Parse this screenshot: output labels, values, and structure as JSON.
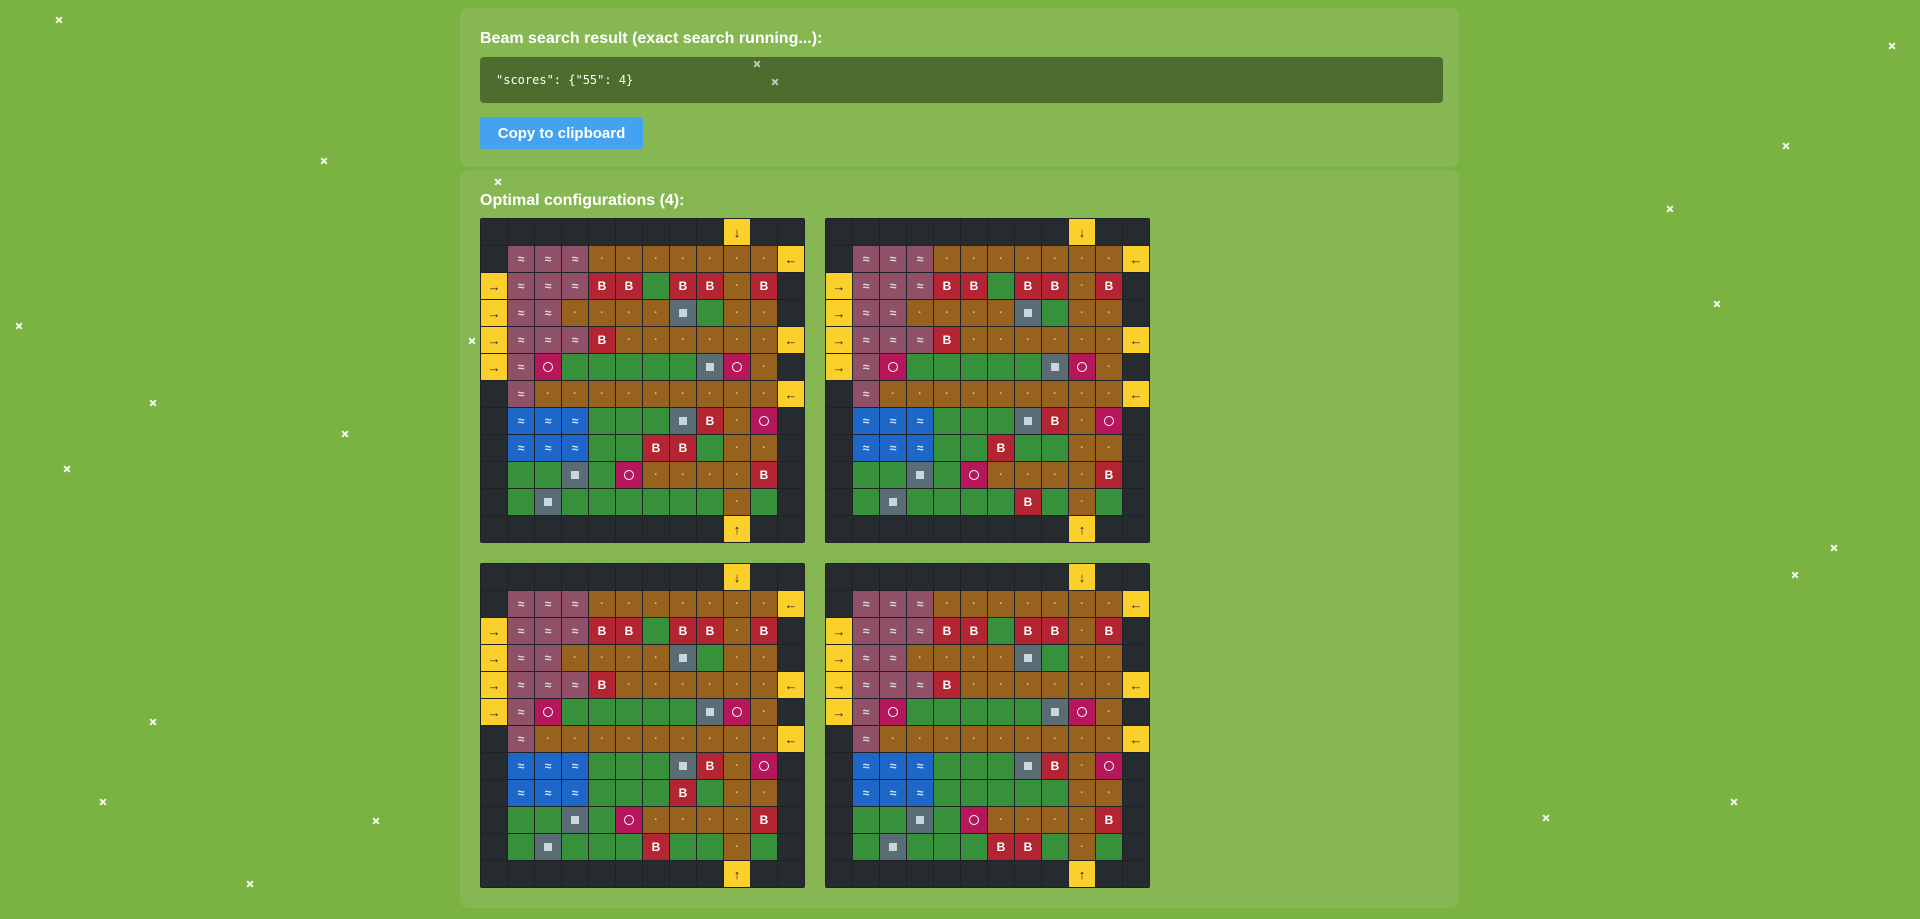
{
  "result_panel": {
    "title": "Beam search result (exact search running...):",
    "code": "\"scores\": {\"55\": 4}",
    "copy_button_label": "Copy to clipboard"
  },
  "configs_panel": {
    "title": "Optimal configurations (4):"
  },
  "legend": {
    "E": {
      "name": "empty",
      "color": "#262b30"
    },
    "A": {
      "name": "arrow",
      "color": "#fcd02b"
    },
    "W": {
      "name": "water-tile",
      "color": "#8f5068",
      "glyph": "≈"
    },
    "D": {
      "name": "dirt",
      "color": "#97621e",
      "glyph": "·"
    },
    "G": {
      "name": "grass",
      "color": "#37913a"
    },
    "B": {
      "name": "building",
      "color": "#b32532",
      "glyph": "B"
    },
    "S": {
      "name": "stone",
      "color": "#5a6c74"
    },
    "O": {
      "name": "ring",
      "color": "#b5175a"
    },
    "L": {
      "name": "lake",
      "color": "#1c67c8",
      "glyph": "≈"
    }
  },
  "grids": [
    {
      "rows": [
        "EEEEEEEEE↓EE",
        "EWWWDDDDDDD←",
        "→WWWBBGBBDBE",
        "→WWDDDDSGDDE",
        "→WWWBDDDDDD←",
        "→WOGGGGGSODE",
        "EWDDDDDDDDD←",
        "ELLLGGGSBDOE",
        "ELLLGGBBGDDE",
        "EGGSGODDDDBE",
        "EGSGGGGGGDGE",
        "EEEEEEEEE↑EE"
      ]
    },
    {
      "rows": [
        "EEEEEEEEE↓EE",
        "EWWWDDDDDDD←",
        "→WWWBBGBBDBE",
        "→WWDDDDSGDDE",
        "→WWWBDDDDDD←",
        "→WOGGGGGSODE",
        "EWDDDDDDDDD←",
        "ELLLGGGSBDOE",
        "ELLLGGBGGDDE",
        "EGGSGODDDDBE",
        "EGSGGGGBGDGE",
        "EEEEEEEEE↑EE"
      ]
    },
    {
      "rows": [
        "EEEEEEEEE↓EE",
        "EWWWDDDDDDD←",
        "→WWWBBGBBDBE",
        "→WWDDDDSGDDE",
        "→WWWBDDDDDD←",
        "→WOGGGGGSODE",
        "EWDDDDDDDDD←",
        "ELLLGGGSBDOE",
        "ELLLGGGBGDDE",
        "EGGSGODDDDBE",
        "EGSGGGBGGDGE",
        "EEEEEEEEE↑EE"
      ]
    },
    {
      "rows": [
        "EEEEEEEEE↓EE",
        "EWWWDDDDDDD←",
        "→WWWBBGBBDBE",
        "→WWDDDDSGDDE",
        "→WWWBDDDDDD←",
        "→WOGGGGGSODE",
        "EWDDDDDDDDD←",
        "ELLLGGGSBDOE",
        "ELLLGGGGGDDE",
        "EGGSGODDDDBE",
        "EGSGGGBBGDGE",
        "EEEEEEEEE↑EE"
      ]
    }
  ]
}
